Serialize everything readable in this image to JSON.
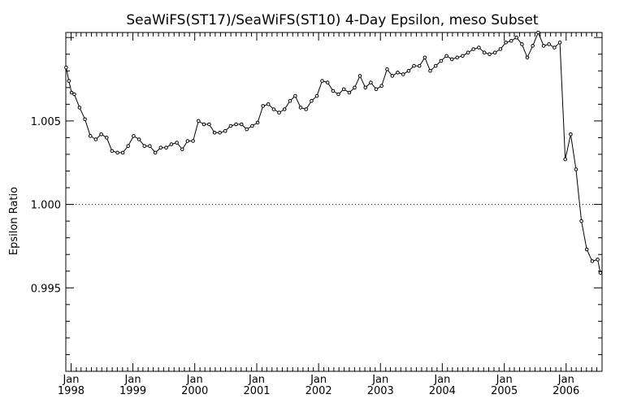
{
  "chart_data": {
    "type": "line",
    "title": "SeaWiFS(ST17)/SeaWiFS(ST10) 4-Day Epsilon, meso Subset",
    "xlabel": "",
    "ylabel": "Epsilon Ratio",
    "xlim": [
      "1997-12-01",
      "2006-08-01"
    ],
    "ylim": [
      0.99,
      1.0103
    ],
    "reference_line": 1.0,
    "y_ticks": [
      "0.995",
      "1.000",
      "1.005"
    ],
    "x_ticks": [
      {
        "month": "Jan",
        "year": "1998"
      },
      {
        "month": "Jan",
        "year": "1999"
      },
      {
        "month": "Jan",
        "year": "2000"
      },
      {
        "month": "Jan",
        "year": "2001"
      },
      {
        "month": "Jan",
        "year": "2002"
      },
      {
        "month": "Jan",
        "year": "2003"
      },
      {
        "month": "Jan",
        "year": "2004"
      },
      {
        "month": "Jan",
        "year": "2005"
      },
      {
        "month": "Jan",
        "year": "2006"
      }
    ],
    "series": [
      {
        "x": [
          "1997-12-03",
          "1997-12-19",
          "1998-01-04",
          "1998-01-20",
          "1998-02-20",
          "1998-03-24",
          "1998-04-25",
          "1998-05-27",
          "1998-06-28",
          "1998-07-30",
          "1998-08-31",
          "1998-10-02",
          "1998-11-02",
          "1998-12-04",
          "1999-01-05",
          "1999-02-06",
          "1999-03-10",
          "1999-04-11",
          "1999-05-13",
          "1999-06-14",
          "1999-07-16",
          "1999-08-16",
          "1999-09-17",
          "1999-10-19",
          "1999-11-20",
          "1999-12-22",
          "2000-01-23",
          "2000-02-24",
          "2000-03-26",
          "2000-04-27",
          "2000-05-28",
          "2000-06-29",
          "2000-07-31",
          "2000-09-01",
          "2000-10-03",
          "2000-11-03",
          "2000-12-05",
          "2001-01-06",
          "2001-02-07",
          "2001-03-10",
          "2001-04-11",
          "2001-05-13",
          "2001-06-14",
          "2001-07-16",
          "2001-08-16",
          "2001-09-17",
          "2001-10-19",
          "2001-11-20",
          "2001-12-22",
          "2002-01-22",
          "2002-02-23",
          "2002-03-27",
          "2002-04-28",
          "2002-05-30",
          "2002-07-01",
          "2002-08-02",
          "2002-09-02",
          "2002-10-04",
          "2002-11-05",
          "2002-12-07",
          "2003-01-08",
          "2003-02-09",
          "2003-03-12",
          "2003-04-13",
          "2003-05-15",
          "2003-06-16",
          "2003-07-18",
          "2003-08-19",
          "2003-09-20",
          "2003-10-22",
          "2003-11-23",
          "2003-12-25",
          "2004-01-26",
          "2004-02-27",
          "2004-03-29",
          "2004-04-30",
          "2004-06-01",
          "2004-07-03",
          "2004-08-04",
          "2004-09-05",
          "2004-10-06",
          "2004-11-07",
          "2004-12-09",
          "2005-01-10",
          "2005-02-11",
          "2005-03-14",
          "2005-04-15",
          "2005-05-17",
          "2005-06-18",
          "2005-07-20",
          "2005-08-21",
          "2005-09-22",
          "2005-10-24",
          "2005-11-25",
          "2005-12-27",
          "2006-01-28",
          "2006-02-28",
          "2006-04-01",
          "2006-05-03",
          "2006-06-04",
          "2006-07-06",
          "2006-07-22"
        ],
        "y": [
          1.0082,
          1.0074,
          1.0067,
          1.0066,
          1.0058,
          1.0051,
          1.0041,
          1.0039,
          1.0042,
          1.004,
          1.0032,
          1.0031,
          1.0031,
          1.0035,
          1.0041,
          1.0039,
          1.0035,
          1.0035,
          1.0031,
          1.0034,
          1.0034,
          1.0036,
          1.0037,
          1.0033,
          1.0038,
          1.0038,
          1.005,
          1.0048,
          1.0048,
          1.0043,
          1.0043,
          1.0044,
          1.0047,
          1.0048,
          1.0048,
          1.0045,
          1.0047,
          1.0049,
          1.0059,
          1.006,
          1.0057,
          1.0055,
          1.0057,
          1.0062,
          1.0065,
          1.0058,
          1.0057,
          1.0062,
          1.0065,
          1.0074,
          1.0073,
          1.0068,
          1.0066,
          1.0069,
          1.0067,
          1.007,
          1.0077,
          1.007,
          1.0073,
          1.0069,
          1.0071,
          1.0081,
          1.0077,
          1.0079,
          1.0078,
          1.008,
          1.0083,
          1.0083,
          1.0088,
          1.008,
          1.0083,
          1.0086,
          1.0089,
          1.0087,
          1.0088,
          1.0089,
          1.0091,
          1.0093,
          1.0094,
          1.0091,
          1.009,
          1.0091,
          1.0093,
          1.0097,
          1.0098,
          1.01,
          1.0096,
          1.0088,
          1.0095,
          1.0103,
          1.0095,
          1.0096,
          1.0094,
          1.0097,
          1.0027,
          1.0042,
          1.0021,
          0.999,
          0.9973,
          0.9966,
          0.9967,
          0.9959
        ]
      }
    ]
  }
}
